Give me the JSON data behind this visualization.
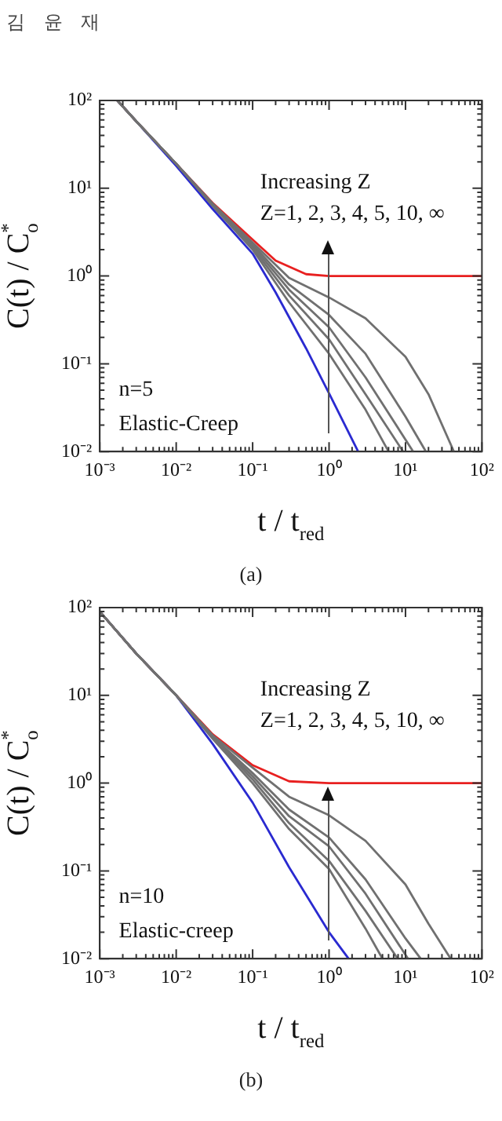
{
  "chart_data": [
    {
      "type": "line",
      "xlabel": "t / t$_{red}$",
      "ylabel": "C(t) / C$_{o}$$^{*}$",
      "log": "xy",
      "xlim": [
        0.001,
        100
      ],
      "ylim": [
        0.01,
        100
      ],
      "xticks": [
        {
          "value": 0.001,
          "label": "10⁻³"
        },
        {
          "value": 0.002,
          "label": null
        },
        {
          "value": 0.003,
          "label": null
        },
        {
          "value": 0.004,
          "label": null
        },
        {
          "value": 0.005,
          "label": null
        },
        {
          "value": 0.006,
          "label": null
        },
        {
          "value": 0.007,
          "label": null
        },
        {
          "value": 0.008,
          "label": null
        },
        {
          "value": 0.009,
          "label": null
        },
        {
          "value": 0.01,
          "label": "10⁻²"
        },
        {
          "value": 0.02,
          "label": null
        },
        {
          "value": 0.03,
          "label": null
        },
        {
          "value": 0.04,
          "label": null
        },
        {
          "value": 0.05,
          "label": null
        },
        {
          "value": 0.06,
          "label": null
        },
        {
          "value": 0.07,
          "label": null
        },
        {
          "value": 0.08,
          "label": null
        },
        {
          "value": 0.09,
          "label": null
        },
        {
          "value": 0.1,
          "label": "10⁻¹"
        },
        {
          "value": 0.2,
          "label": null
        },
        {
          "value": 0.3,
          "label": null
        },
        {
          "value": 0.4,
          "label": null
        },
        {
          "value": 0.5,
          "label": null
        },
        {
          "value": 0.6,
          "label": null
        },
        {
          "value": 0.7,
          "label": null
        },
        {
          "value": 0.8,
          "label": null
        },
        {
          "value": 0.9,
          "label": null
        },
        {
          "value": 1,
          "label": "10⁰"
        },
        {
          "value": 2,
          "label": null
        },
        {
          "value": 3,
          "label": null
        },
        {
          "value": 4,
          "label": null
        },
        {
          "value": 5,
          "label": null
        },
        {
          "value": 6,
          "label": null
        },
        {
          "value": 7,
          "label": null
        },
        {
          "value": 8,
          "label": null
        },
        {
          "value": 9,
          "label": null
        },
        {
          "value": 10,
          "label": "10¹"
        },
        {
          "value": 20,
          "label": null
        },
        {
          "value": 30,
          "label": null
        },
        {
          "value": 40,
          "label": null
        },
        {
          "value": 50,
          "label": null
        },
        {
          "value": 60,
          "label": null
        },
        {
          "value": 70,
          "label": null
        },
        {
          "value": 80,
          "label": null
        },
        {
          "value": 90,
          "label": null
        },
        {
          "value": 100,
          "label": "10²"
        }
      ],
      "yticks": [
        {
          "value": 0.01,
          "label": "10⁻²"
        },
        {
          "value": 0.02,
          "label": null
        },
        {
          "value": 0.03,
          "label": null
        },
        {
          "value": 0.04,
          "label": null
        },
        {
          "value": 0.05,
          "label": null
        },
        {
          "value": 0.06,
          "label": null
        },
        {
          "value": 0.07,
          "label": null
        },
        {
          "value": 0.08,
          "label": null
        },
        {
          "value": 0.09,
          "label": null
        },
        {
          "value": 0.1,
          "label": "10⁻¹"
        },
        {
          "value": 0.2,
          "label": null
        },
        {
          "value": 0.3,
          "label": null
        },
        {
          "value": 0.4,
          "label": null
        },
        {
          "value": 0.5,
          "label": null
        },
        {
          "value": 0.6,
          "label": null
        },
        {
          "value": 0.7,
          "label": null
        },
        {
          "value": 0.8,
          "label": null
        },
        {
          "value": 0.9,
          "label": null
        },
        {
          "value": 1,
          "label": "10⁰"
        },
        {
          "value": 2,
          "label": null
        },
        {
          "value": 3,
          "label": null
        },
        {
          "value": 4,
          "label": null
        },
        {
          "value": 5,
          "label": null
        },
        {
          "value": 6,
          "label": null
        },
        {
          "value": 7,
          "label": null
        },
        {
          "value": 8,
          "label": null
        },
        {
          "value": 9,
          "label": null
        },
        {
          "value": 10,
          "label": "10¹"
        },
        {
          "value": 20,
          "label": null
        },
        {
          "value": 30,
          "label": null
        },
        {
          "value": 40,
          "label": null
        },
        {
          "value": 50,
          "label": null
        },
        {
          "value": 60,
          "label": null
        },
        {
          "value": 70,
          "label": null
        },
        {
          "value": 80,
          "label": null
        },
        {
          "value": 90,
          "label": null
        },
        {
          "value": 100,
          "label": "10²"
        }
      ],
      "annotations": [
        "Increasing Z",
        "Z=1, 2, 3, 4, 5, 10, ∞",
        "n=5",
        "Elastic-Creep",
        "(a)",
        "김 윤 재"
      ],
      "series": [
        {
          "color": "#707070",
          "x": [
            0.0017,
            0.003,
            0.01,
            0.03,
            0.1,
            0.3,
            1,
            3,
            6
          ],
          "values": [
            100,
            58,
            19,
            6.3,
            2.0,
            0.5,
            0.13,
            0.03,
            0.01
          ]
        },
        {
          "color": "#707070",
          "x": [
            0.0017,
            0.003,
            0.01,
            0.03,
            0.1,
            0.3,
            1,
            3,
            9.3
          ],
          "values": [
            100,
            58,
            19,
            6.4,
            2.1,
            0.6,
            0.19,
            0.045,
            0.01
          ]
        },
        {
          "color": "#707070",
          "x": [
            0.0017,
            0.003,
            0.01,
            0.03,
            0.1,
            0.3,
            1,
            3,
            12.6
          ],
          "values": [
            100,
            58,
            19,
            6.5,
            2.2,
            0.7,
            0.26,
            0.07,
            0.01
          ]
        },
        {
          "color": "#707070",
          "x": [
            0.0017,
            0.003,
            0.01,
            0.03,
            0.1,
            0.3,
            1,
            3,
            10,
            18.5
          ],
          "values": [
            100,
            58,
            19,
            6.6,
            2.3,
            0.8,
            0.36,
            0.13,
            0.025,
            0.01
          ]
        },
        {
          "color": "#707070",
          "x": [
            0.0017,
            0.003,
            0.01,
            0.03,
            0.1,
            0.3,
            1,
            3,
            10,
            20,
            43
          ],
          "values": [
            100,
            58,
            19,
            6.7,
            2.4,
            0.95,
            0.57,
            0.33,
            0.12,
            0.045,
            0.01
          ]
        },
        {
          "color": "#2a2ad0",
          "x": [
            0.0017,
            0.003,
            0.01,
            0.03,
            0.1,
            0.2,
            0.5,
            1,
            2.4
          ],
          "values": [
            100,
            58,
            18,
            5.8,
            1.8,
            0.65,
            0.15,
            0.046,
            0.01
          ]
        },
        {
          "color": "#e82020",
          "x": [
            0.0017,
            0.003,
            0.01,
            0.03,
            0.1,
            0.2,
            0.5,
            1,
            100
          ],
          "values": [
            100,
            58,
            19,
            6.8,
            2.6,
            1.5,
            1.05,
            1,
            1
          ]
        }
      ]
    },
    {
      "type": "line",
      "xlabel": "t / t$_{red}$",
      "ylabel": "C(t) / C$_{o}$$^{*}$",
      "log": "xy",
      "xlim": [
        0.001,
        100
      ],
      "ylim": [
        0.01,
        100
      ],
      "xticks": [
        {
          "value": 0.001,
          "label": "10⁻³"
        },
        {
          "value": 0.002,
          "label": null
        },
        {
          "value": 0.003,
          "label": null
        },
        {
          "value": 0.004,
          "label": null
        },
        {
          "value": 0.005,
          "label": null
        },
        {
          "value": 0.006,
          "label": null
        },
        {
          "value": 0.007,
          "label": null
        },
        {
          "value": 0.008,
          "label": null
        },
        {
          "value": 0.009,
          "label": null
        },
        {
          "value": 0.01,
          "label": "10⁻²"
        },
        {
          "value": 0.02,
          "label": null
        },
        {
          "value": 0.03,
          "label": null
        },
        {
          "value": 0.04,
          "label": null
        },
        {
          "value": 0.05,
          "label": null
        },
        {
          "value": 0.06,
          "label": null
        },
        {
          "value": 0.07,
          "label": null
        },
        {
          "value": 0.08,
          "label": null
        },
        {
          "value": 0.09,
          "label": null
        },
        {
          "value": 0.1,
          "label": "10⁻¹"
        },
        {
          "value": 0.2,
          "label": null
        },
        {
          "value": 0.3,
          "label": null
        },
        {
          "value": 0.4,
          "label": null
        },
        {
          "value": 0.5,
          "label": null
        },
        {
          "value": 0.6,
          "label": null
        },
        {
          "value": 0.7,
          "label": null
        },
        {
          "value": 0.8,
          "label": null
        },
        {
          "value": 0.9,
          "label": null
        },
        {
          "value": 1,
          "label": "10⁰"
        },
        {
          "value": 2,
          "label": null
        },
        {
          "value": 3,
          "label": null
        },
        {
          "value": 4,
          "label": null
        },
        {
          "value": 5,
          "label": null
        },
        {
          "value": 6,
          "label": null
        },
        {
          "value": 7,
          "label": null
        },
        {
          "value": 8,
          "label": null
        },
        {
          "value": 9,
          "label": null
        },
        {
          "value": 10,
          "label": "10¹"
        },
        {
          "value": 20,
          "label": null
        },
        {
          "value": 30,
          "label": null
        },
        {
          "value": 40,
          "label": null
        },
        {
          "value": 50,
          "label": null
        },
        {
          "value": 60,
          "label": null
        },
        {
          "value": 70,
          "label": null
        },
        {
          "value": 80,
          "label": null
        },
        {
          "value": 90,
          "label": null
        },
        {
          "value": 100,
          "label": "10²"
        }
      ],
      "yticks": [
        {
          "value": 0.01,
          "label": "10⁻²"
        },
        {
          "value": 0.02,
          "label": null
        },
        {
          "value": 0.03,
          "label": null
        },
        {
          "value": 0.04,
          "label": null
        },
        {
          "value": 0.05,
          "label": null
        },
        {
          "value": 0.06,
          "label": null
        },
        {
          "value": 0.07,
          "label": null
        },
        {
          "value": 0.08,
          "label": null
        },
        {
          "value": 0.09,
          "label": null
        },
        {
          "value": 0.1,
          "label": "10⁻¹"
        },
        {
          "value": 0.2,
          "label": null
        },
        {
          "value": 0.3,
          "label": null
        },
        {
          "value": 0.4,
          "label": null
        },
        {
          "value": 0.5,
          "label": null
        },
        {
          "value": 0.6,
          "label": null
        },
        {
          "value": 0.7,
          "label": null
        },
        {
          "value": 0.8,
          "label": null
        },
        {
          "value": 0.9,
          "label": null
        },
        {
          "value": 1,
          "label": "10⁰"
        },
        {
          "value": 2,
          "label": null
        },
        {
          "value": 3,
          "label": null
        },
        {
          "value": 4,
          "label": null
        },
        {
          "value": 5,
          "label": null
        },
        {
          "value": 6,
          "label": null
        },
        {
          "value": 7,
          "label": null
        },
        {
          "value": 8,
          "label": null
        },
        {
          "value": 9,
          "label": null
        },
        {
          "value": 10,
          "label": "10¹"
        },
        {
          "value": 20,
          "label": null
        },
        {
          "value": 30,
          "label": null
        },
        {
          "value": 40,
          "label": null
        },
        {
          "value": 50,
          "label": null
        },
        {
          "value": 60,
          "label": null
        },
        {
          "value": 70,
          "label": null
        },
        {
          "value": 80,
          "label": null
        },
        {
          "value": 90,
          "label": null
        },
        {
          "value": 100,
          "label": "10²"
        }
      ],
      "annotations": [
        "Increasing Z",
        "Z=1, 2, 3, 4, 5, 10, ∞",
        "n=10",
        "Elastic-creep",
        "(b)"
      ],
      "series": [
        {
          "color": "#707070",
          "x": [
            0.001,
            0.003,
            0.01,
            0.03,
            0.1,
            0.3,
            1,
            3,
            5
          ],
          "values": [
            90,
            30,
            10,
            3.2,
            1.0,
            0.3,
            0.105,
            0.022,
            0.01
          ]
        },
        {
          "color": "#707070",
          "x": [
            0.001,
            0.003,
            0.01,
            0.03,
            0.1,
            0.3,
            1,
            3,
            7.9
          ],
          "values": [
            90,
            30,
            10,
            3.3,
            1.1,
            0.35,
            0.13,
            0.035,
            0.01
          ]
        },
        {
          "color": "#707070",
          "x": [
            0.001,
            0.003,
            0.01,
            0.03,
            0.1,
            0.3,
            1,
            3,
            10.8
          ],
          "values": [
            90,
            30,
            10,
            3.3,
            1.2,
            0.42,
            0.19,
            0.055,
            0.01
          ]
        },
        {
          "color": "#707070",
          "x": [
            0.001,
            0.003,
            0.01,
            0.03,
            0.1,
            0.3,
            1,
            3,
            10,
            15.8
          ],
          "values": [
            90,
            30,
            10,
            3.4,
            1.3,
            0.5,
            0.24,
            0.08,
            0.017,
            0.01
          ]
        },
        {
          "color": "#707070",
          "x": [
            0.001,
            0.003,
            0.01,
            0.03,
            0.1,
            0.3,
            1,
            3,
            10,
            20,
            39
          ],
          "values": [
            90,
            30,
            10,
            3.5,
            1.5,
            0.7,
            0.43,
            0.22,
            0.07,
            0.025,
            0.01
          ]
        },
        {
          "color": "#2a2ad0",
          "x": [
            0.001,
            0.003,
            0.01,
            0.03,
            0.1,
            0.3,
            1,
            1.8
          ],
          "values": [
            90,
            30,
            10,
            2.8,
            0.6,
            0.11,
            0.02,
            0.01
          ]
        },
        {
          "color": "#e82020",
          "x": [
            0.001,
            0.003,
            0.01,
            0.03,
            0.1,
            0.3,
            1,
            100
          ],
          "values": [
            90,
            30,
            10,
            3.6,
            1.6,
            1.05,
            1,
            1
          ]
        }
      ]
    }
  ]
}
